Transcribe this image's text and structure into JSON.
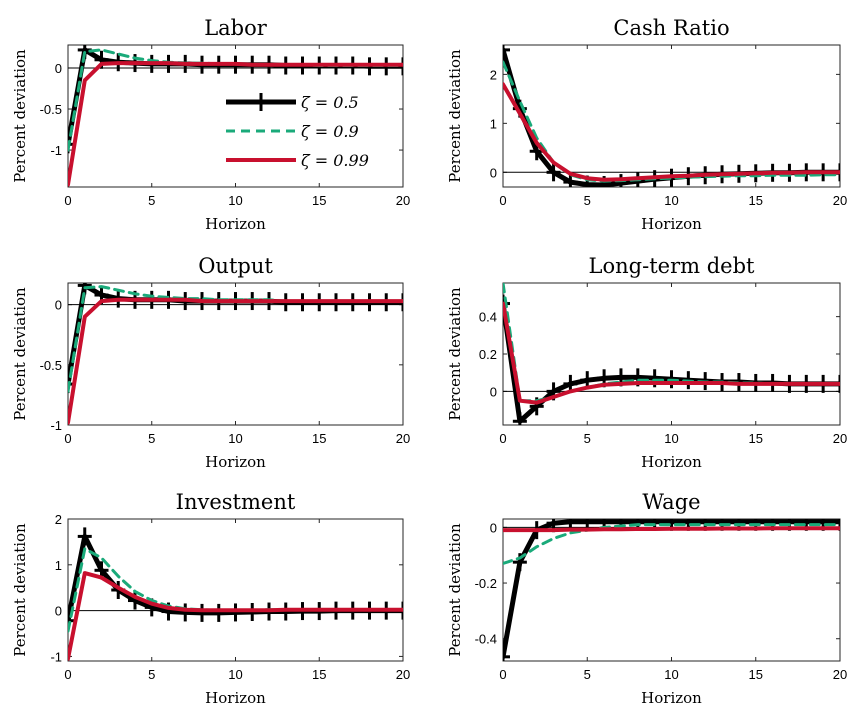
{
  "figure": {
    "legend": {
      "placement": "upper-left-panel",
      "entries": [
        {
          "label": "ζ = 0.5",
          "color": "#000000",
          "style": "solid-cross"
        },
        {
          "label": "ζ = 0.9",
          "color": "#1aaa7a",
          "style": "dashed"
        },
        {
          "label": "ζ = 0.99",
          "color": "#c8102e",
          "style": "solid"
        }
      ]
    }
  },
  "chart_data": [
    {
      "type": "line",
      "title": "Labor",
      "xlabel": "Horizon",
      "ylabel": "Percent deviation",
      "xlim": [
        0,
        20
      ],
      "ylim": [
        -1.45,
        0.28
      ],
      "xticks": [
        0,
        5,
        10,
        15,
        20
      ],
      "yticks": [
        -1,
        -0.5,
        0
      ],
      "ytick_labels": [
        "-1",
        "-0.5",
        "0"
      ],
      "zero_line": true,
      "x": [
        0,
        1,
        2,
        3,
        4,
        5,
        6,
        7,
        8,
        9,
        10,
        11,
        12,
        13,
        14,
        15,
        16,
        17,
        18,
        19,
        20
      ],
      "series": [
        {
          "name": "ζ = 0.5",
          "color": "#000000",
          "values": [
            -0.93,
            0.22,
            0.1,
            0.07,
            0.06,
            0.05,
            0.05,
            0.05,
            0.04,
            0.04,
            0.04,
            0.04,
            0.04,
            0.03,
            0.03,
            0.03,
            0.03,
            0.03,
            0.02,
            0.02,
            0.02
          ]
        },
        {
          "name": "ζ = 0.9",
          "color": "#1aaa7a",
          "values": [
            -1.0,
            0.2,
            0.22,
            0.17,
            0.12,
            0.09,
            0.07,
            0.06,
            0.06,
            0.05,
            0.05,
            0.04,
            0.04,
            0.04,
            0.04,
            0.03,
            0.03,
            0.03,
            0.03,
            0.03,
            0.03
          ]
        },
        {
          "name": "ζ = 0.99",
          "color": "#c8102e",
          "values": [
            -1.42,
            -0.15,
            0.05,
            0.06,
            0.06,
            0.06,
            0.06,
            0.05,
            0.05,
            0.05,
            0.05,
            0.04,
            0.04,
            0.04,
            0.04,
            0.04,
            0.04,
            0.04,
            0.04,
            0.04,
            0.04
          ]
        }
      ]
    },
    {
      "type": "line",
      "title": "Cash Ratio",
      "xlabel": "Horizon",
      "ylabel": "Percent deviation",
      "xlim": [
        0,
        20
      ],
      "ylim": [
        -0.3,
        2.6
      ],
      "xticks": [
        0,
        5,
        10,
        15,
        20
      ],
      "yticks": [
        0,
        1,
        2
      ],
      "ytick_labels": [
        "0",
        "1",
        "2"
      ],
      "zero_line": true,
      "x": [
        0,
        1,
        2,
        3,
        4,
        5,
        6,
        7,
        8,
        9,
        10,
        11,
        12,
        13,
        14,
        15,
        16,
        17,
        18,
        19,
        20
      ],
      "series": [
        {
          "name": "ζ = 0.5",
          "color": "#000000",
          "values": [
            2.5,
            1.3,
            0.43,
            0.0,
            -0.2,
            -0.25,
            -0.26,
            -0.22,
            -0.18,
            -0.14,
            -0.11,
            -0.08,
            -0.06,
            -0.04,
            -0.03,
            -0.02,
            -0.01,
            -0.01,
            0.0,
            0.0,
            0.0
          ]
        },
        {
          "name": "ζ = 0.9",
          "color": "#1aaa7a",
          "values": [
            2.25,
            1.45,
            0.7,
            0.2,
            -0.05,
            -0.15,
            -0.18,
            -0.17,
            -0.15,
            -0.13,
            -0.12,
            -0.1,
            -0.09,
            -0.08,
            -0.07,
            -0.07,
            -0.06,
            -0.06,
            -0.06,
            -0.05,
            -0.05
          ]
        },
        {
          "name": "ζ = 0.99",
          "color": "#c8102e",
          "values": [
            1.8,
            1.2,
            0.6,
            0.2,
            -0.03,
            -0.12,
            -0.15,
            -0.14,
            -0.12,
            -0.1,
            -0.08,
            -0.07,
            -0.05,
            -0.04,
            -0.03,
            -0.02,
            -0.01,
            -0.01,
            0.0,
            0.0,
            0.0
          ]
        }
      ]
    },
    {
      "type": "line",
      "title": "Output",
      "xlabel": "Horizon",
      "ylabel": "Percent deviation",
      "xlim": [
        0,
        20
      ],
      "ylim": [
        -1.0,
        0.18
      ],
      "xticks": [
        0,
        5,
        10,
        15,
        20
      ],
      "yticks": [
        -1,
        -0.5,
        0
      ],
      "ytick_labels": [
        "-1",
        "-0.5",
        "0"
      ],
      "zero_line": true,
      "x": [
        0,
        1,
        2,
        3,
        4,
        5,
        6,
        7,
        8,
        9,
        10,
        11,
        12,
        13,
        14,
        15,
        16,
        17,
        18,
        19,
        20
      ],
      "series": [
        {
          "name": "ζ = 0.5",
          "color": "#000000",
          "values": [
            -0.66,
            0.16,
            0.08,
            0.05,
            0.04,
            0.04,
            0.04,
            0.03,
            0.03,
            0.03,
            0.03,
            0.03,
            0.03,
            0.02,
            0.02,
            0.02,
            0.02,
            0.02,
            0.02,
            0.02,
            0.02
          ]
        },
        {
          "name": "ζ = 0.9",
          "color": "#1aaa7a",
          "values": [
            -0.72,
            0.14,
            0.15,
            0.12,
            0.09,
            0.07,
            0.06,
            0.05,
            0.05,
            0.04,
            0.04,
            0.04,
            0.04,
            0.03,
            0.03,
            0.03,
            0.03,
            0.03,
            0.03,
            0.03,
            0.03
          ]
        },
        {
          "name": "ζ = 0.99",
          "color": "#c8102e",
          "values": [
            -0.98,
            -0.1,
            0.03,
            0.04,
            0.04,
            0.04,
            0.04,
            0.04,
            0.03,
            0.03,
            0.03,
            0.03,
            0.03,
            0.03,
            0.03,
            0.03,
            0.03,
            0.03,
            0.03,
            0.03,
            0.03
          ]
        }
      ]
    },
    {
      "type": "line",
      "title": "Long-term debt",
      "xlabel": "Horizon",
      "ylabel": "Percent deviation",
      "xlim": [
        0,
        20
      ],
      "ylim": [
        -0.18,
        0.58
      ],
      "xticks": [
        0,
        5,
        10,
        15,
        20
      ],
      "yticks": [
        0,
        0.2,
        0.4
      ],
      "ytick_labels": [
        "0",
        "0.2",
        "0.4"
      ],
      "zero_line": true,
      "x": [
        0,
        1,
        2,
        3,
        4,
        5,
        6,
        7,
        8,
        9,
        10,
        11,
        12,
        13,
        14,
        15,
        16,
        17,
        18,
        19,
        20
      ],
      "series": [
        {
          "name": "ζ = 0.5",
          "color": "#000000",
          "values": [
            0.47,
            -0.16,
            -0.08,
            0.0,
            0.04,
            0.06,
            0.07,
            0.075,
            0.075,
            0.07,
            0.065,
            0.06,
            0.055,
            0.05,
            0.05,
            0.045,
            0.045,
            0.04,
            0.04,
            0.04,
            0.04
          ]
        },
        {
          "name": "ζ = 0.9",
          "color": "#1aaa7a",
          "values": [
            0.58,
            -0.05,
            -0.05,
            -0.03,
            0.0,
            0.02,
            0.04,
            0.05,
            0.06,
            0.06,
            0.06,
            0.055,
            0.05,
            0.05,
            0.045,
            0.045,
            0.04,
            0.04,
            0.04,
            0.04,
            0.04
          ]
        },
        {
          "name": "ζ = 0.99",
          "color": "#c8102e",
          "values": [
            0.47,
            -0.05,
            -0.06,
            -0.03,
            0.0,
            0.02,
            0.035,
            0.04,
            0.045,
            0.045,
            0.045,
            0.045,
            0.045,
            0.045,
            0.04,
            0.04,
            0.04,
            0.04,
            0.04,
            0.04,
            0.04
          ]
        }
      ]
    },
    {
      "type": "line",
      "title": "Investment",
      "xlabel": "Horizon",
      "ylabel": "Percent deviation",
      "xlim": [
        0,
        20
      ],
      "ylim": [
        -1.1,
        2.0
      ],
      "xticks": [
        0,
        5,
        10,
        15,
        20
      ],
      "yticks": [
        -1,
        0,
        1,
        2
      ],
      "ytick_labels": [
        "-1",
        "0",
        "1",
        "2"
      ],
      "zero_line": true,
      "x": [
        0,
        1,
        2,
        3,
        4,
        5,
        6,
        7,
        8,
        9,
        10,
        11,
        12,
        13,
        14,
        15,
        16,
        17,
        18,
        19,
        20
      ],
      "series": [
        {
          "name": "ζ = 0.5",
          "color": "#000000",
          "values": [
            -0.22,
            1.62,
            0.88,
            0.45,
            0.22,
            0.07,
            -0.02,
            -0.04,
            -0.05,
            -0.05,
            -0.04,
            -0.03,
            -0.02,
            -0.02,
            -0.01,
            -0.01,
            0.0,
            0.0,
            0.0,
            0.0,
            0.0
          ]
        },
        {
          "name": "ζ = 0.9",
          "color": "#1aaa7a",
          "values": [
            -0.45,
            1.35,
            1.15,
            0.75,
            0.42,
            0.22,
            0.1,
            0.04,
            0.02,
            0.01,
            0.01,
            0.01,
            0.02,
            0.02,
            0.02,
            0.02,
            0.02,
            0.02,
            0.02,
            0.02,
            0.02
          ]
        },
        {
          "name": "ζ = 0.99",
          "color": "#c8102e",
          "values": [
            -1.05,
            0.82,
            0.72,
            0.5,
            0.3,
            0.15,
            0.06,
            0.02,
            0.01,
            0.01,
            0.01,
            0.01,
            0.01,
            0.02,
            0.02,
            0.02,
            0.02,
            0.02,
            0.02,
            0.02,
            0.02
          ]
        }
      ]
    },
    {
      "type": "line",
      "title": "Wage",
      "xlabel": "Horizon",
      "ylabel": "Percent deviation",
      "xlim": [
        0,
        20
      ],
      "ylim": [
        -0.48,
        0.03
      ],
      "xticks": [
        0,
        5,
        10,
        15,
        20
      ],
      "yticks": [
        -0.4,
        -0.2,
        0
      ],
      "ytick_labels": [
        "-0.4",
        "-0.2",
        "0"
      ],
      "zero_line": true,
      "x": [
        0,
        1,
        2,
        3,
        4,
        5,
        6,
        7,
        8,
        9,
        10,
        11,
        12,
        13,
        14,
        15,
        16,
        17,
        18,
        19,
        20
      ],
      "series": [
        {
          "name": "ζ = 0.5",
          "color": "#000000",
          "values": [
            -0.465,
            -0.125,
            -0.01,
            0.015,
            0.02,
            0.02,
            0.02,
            0.02,
            0.02,
            0.02,
            0.02,
            0.02,
            0.02,
            0.02,
            0.02,
            0.02,
            0.02,
            0.02,
            0.02,
            0.02,
            0.02
          ]
        },
        {
          "name": "ζ = 0.9",
          "color": "#1aaa7a",
          "values": [
            -0.13,
            -0.11,
            -0.07,
            -0.04,
            -0.02,
            -0.01,
            0.0,
            0.005,
            0.01,
            0.01,
            0.01,
            0.01,
            0.01,
            0.01,
            0.01,
            0.01,
            0.01,
            0.01,
            0.01,
            0.01,
            0.01
          ]
        },
        {
          "name": "ζ = 0.99",
          "color": "#c8102e",
          "values": [
            -0.01,
            -0.01,
            -0.01,
            -0.01,
            -0.008,
            -0.008,
            -0.007,
            -0.007,
            -0.006,
            -0.006,
            -0.005,
            -0.005,
            -0.005,
            -0.004,
            -0.004,
            -0.004,
            -0.003,
            -0.003,
            -0.003,
            -0.003,
            -0.003
          ]
        }
      ]
    }
  ]
}
